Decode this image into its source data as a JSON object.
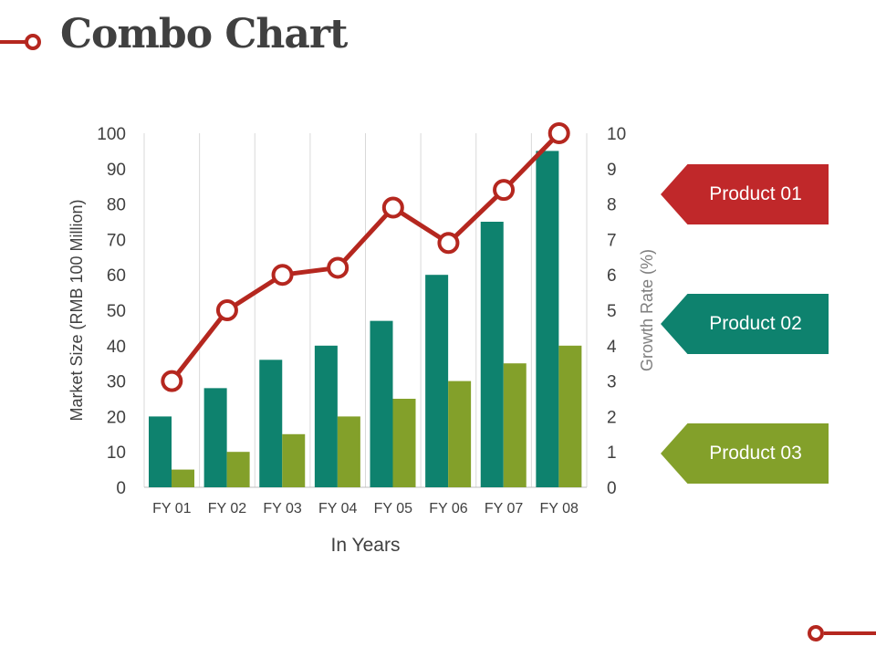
{
  "page": {
    "title": "Combo Chart"
  },
  "colors": {
    "accent_red": "#B5271F",
    "teal": "#0E826E",
    "olive": "#83A02A",
    "title_gray": "#404040",
    "grid": "#D9D9D9"
  },
  "legend": [
    {
      "label": "Product 01",
      "color": "#C0282A"
    },
    {
      "label": "Product 02",
      "color": "#0E826E"
    },
    {
      "label": "Product 03",
      "color": "#83A02A"
    }
  ],
  "chart_data": {
    "type": "bar",
    "categories": [
      "FY 01",
      "FY 02",
      "FY 03",
      "FY 04",
      "FY 05",
      "FY 06",
      "FY 07",
      "FY 08"
    ],
    "xlabel": "In Years",
    "ylabel": "Market Size (RMB 100 Million)",
    "y2label": "Growth Rate (%)",
    "ylim": [
      0,
      100
    ],
    "y2lim": [
      0,
      10
    ],
    "yticks": [
      "0",
      "10",
      "20",
      "30",
      "40",
      "50",
      "60",
      "70",
      "80",
      "90",
      "100"
    ],
    "y2ticks": [
      "0",
      "1",
      "2",
      "3",
      "4",
      "5",
      "6",
      "7",
      "8",
      "9",
      "10"
    ],
    "grid": "vertical",
    "series": [
      {
        "name": "Product 01",
        "type": "line",
        "axis": "right",
        "color": "#B5271F",
        "values": [
          3,
          5,
          6,
          6.2,
          7.9,
          6.9,
          8.4,
          10
        ]
      },
      {
        "name": "Product 02",
        "type": "bar",
        "axis": "left",
        "color": "#0E826E",
        "values": [
          20,
          28,
          36,
          40,
          47,
          60,
          75,
          95
        ]
      },
      {
        "name": "Product 03",
        "type": "bar",
        "axis": "left",
        "color": "#83A02A",
        "values": [
          5,
          10,
          15,
          20,
          25,
          30,
          35,
          40
        ]
      }
    ]
  }
}
